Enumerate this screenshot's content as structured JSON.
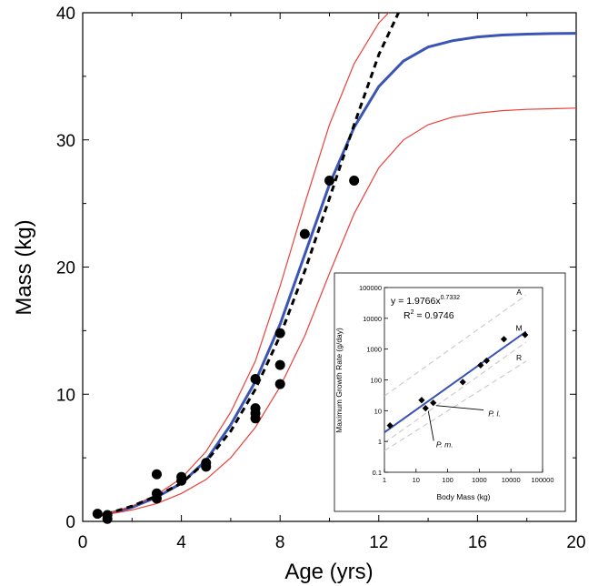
{
  "chart_data": [
    {
      "type": "line",
      "xlabel": "Age (yrs)",
      "ylabel": "Mass (kg)",
      "xlim": [
        0,
        20
      ],
      "ylim": [
        0,
        40
      ],
      "xticks": [
        0,
        4,
        8,
        12,
        16,
        20
      ],
      "yticks": [
        0,
        10,
        20,
        30,
        40
      ],
      "grid": false,
      "colors": {
        "fit": "#3a55b4",
        "bounds": "#e8413a",
        "trend": "#000000",
        "points": "#000000"
      },
      "points": [
        {
          "x": 0.6,
          "y": 0.6
        },
        {
          "x": 1.0,
          "y": 0.2
        },
        {
          "x": 1.0,
          "y": 0.5
        },
        {
          "x": 3.0,
          "y": 1.8
        },
        {
          "x": 3.0,
          "y": 2.2
        },
        {
          "x": 3.0,
          "y": 3.7
        },
        {
          "x": 4.0,
          "y": 3.2
        },
        {
          "x": 4.0,
          "y": 3.5
        },
        {
          "x": 5.0,
          "y": 4.3
        },
        {
          "x": 5.0,
          "y": 4.6
        },
        {
          "x": 7.0,
          "y": 8.1
        },
        {
          "x": 7.0,
          "y": 8.5
        },
        {
          "x": 7.0,
          "y": 8.9
        },
        {
          "x": 7.0,
          "y": 11.2
        },
        {
          "x": 8.0,
          "y": 10.8
        },
        {
          "x": 8.0,
          "y": 12.3
        },
        {
          "x": 8.0,
          "y": 14.8
        },
        {
          "x": 9.0,
          "y": 22.6
        },
        {
          "x": 10.0,
          "y": 26.8
        },
        {
          "x": 11.0,
          "y": 26.8
        }
      ],
      "series": [
        {
          "style": "solid-thick",
          "color": "#3a55b4",
          "x": [
            0.5,
            1,
            2,
            3,
            4,
            5,
            6,
            7,
            8,
            9,
            10,
            11,
            12,
            13,
            14,
            15,
            16,
            17,
            18,
            19,
            20
          ],
          "y": [
            0.35,
            0.6,
            1.1,
            1.9,
            3.0,
            4.8,
            7.6,
            11.0,
            15.5,
            21.0,
            26.5,
            31.0,
            34.2,
            36.2,
            37.3,
            37.8,
            38.1,
            38.25,
            38.32,
            38.36,
            38.38
          ]
        },
        {
          "style": "solid-thin",
          "color": "#e8413a",
          "x": [
            0.5,
            1,
            2,
            3,
            4,
            5,
            6,
            7,
            8,
            9,
            10,
            11,
            12,
            12.4
          ],
          "y": [
            0.35,
            0.6,
            1.2,
            2.1,
            3.4,
            5.5,
            8.6,
            12.6,
            18.5,
            25.0,
            31.2,
            36.0,
            39.2,
            40.0
          ]
        },
        {
          "style": "solid-thin",
          "color": "#e8413a",
          "x": [
            0.5,
            1,
            2,
            3,
            4,
            5,
            6,
            7,
            8,
            9,
            10,
            11,
            12,
            13,
            14,
            15,
            16,
            17,
            18,
            19,
            20
          ],
          "y": [
            0.3,
            0.55,
            0.9,
            1.4,
            2.2,
            3.3,
            5.0,
            7.4,
            10.6,
            14.6,
            19.5,
            24.2,
            27.8,
            30.0,
            31.2,
            31.8,
            32.1,
            32.3,
            32.4,
            32.45,
            32.5
          ]
        },
        {
          "style": "dashed",
          "color": "#000000",
          "x": [
            0.5,
            1,
            2,
            3,
            4,
            5,
            6,
            7,
            8,
            9,
            10,
            11,
            12,
            12.8
          ],
          "y": [
            0.4,
            0.6,
            1.2,
            2.0,
            3.0,
            4.7,
            7.1,
            10.4,
            14.6,
            19.7,
            25.4,
            31.2,
            36.7,
            40.0
          ]
        }
      ]
    },
    {
      "type": "scatter",
      "xlabel": "Body Mass (kg)",
      "ylabel": "Maximum Growth Rate (g/day)",
      "xscale": "log",
      "yscale": "log",
      "xlim": [
        1,
        100000
      ],
      "ylim": [
        0.1,
        100000
      ],
      "xtick_labels": [
        "1",
        "10",
        "100",
        "1000",
        "10000",
        "100000"
      ],
      "ytick_labels": [
        "0.1",
        "1",
        "10",
        "100",
        "1000",
        "10000",
        "100000"
      ],
      "equation": "y = 1.9766x",
      "exponent": "0.7332",
      "r2_label": "R",
      "r2_power": "2",
      "r2_value": " = 0.9746",
      "points": [
        {
          "x": 1.5,
          "y": 3.3
        },
        {
          "x": 15,
          "y": 22
        },
        {
          "x": 20,
          "y": 12
        },
        {
          "x": 35,
          "y": 18
        },
        {
          "x": 300,
          "y": 85
        },
        {
          "x": 1100,
          "y": 300
        },
        {
          "x": 1700,
          "y": 420
        },
        {
          "x": 6000,
          "y": 2100
        },
        {
          "x": 28000,
          "y": 2900
        }
      ],
      "regression": {
        "x": [
          1,
          30000
        ],
        "y": [
          1.9766,
          3716
        ]
      },
      "reference_lines": [
        {
          "label": "A",
          "x": [
            1,
            30000
          ],
          "y": [
            30,
            56300
          ]
        },
        {
          "label": "M",
          "x": [
            1,
            30000
          ],
          "y": [
            2.0,
            3750
          ]
        },
        {
          "label": "R",
          "x": [
            1,
            30000
          ],
          "y": [
            0.5,
            400
          ]
        },
        {
          "label": "",
          "x": [
            1,
            30000
          ],
          "y": [
            0.9,
            1700
          ]
        }
      ],
      "annotations": [
        {
          "text": "P. l.",
          "x": 3000,
          "y": 8,
          "target": [
            35,
            18
          ]
        },
        {
          "text": "P. m.",
          "x": 80,
          "y": 0.8,
          "target": [
            20,
            12
          ]
        }
      ]
    }
  ]
}
